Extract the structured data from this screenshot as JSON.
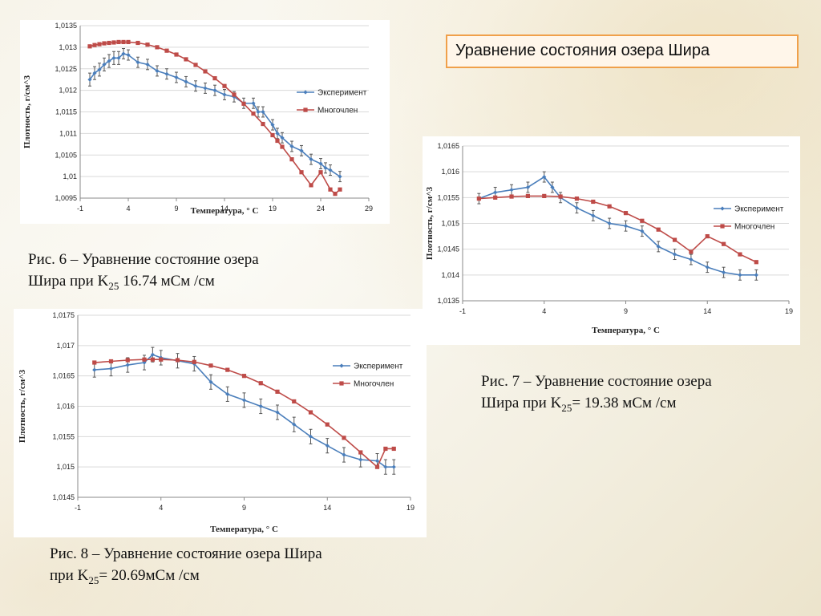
{
  "slide_title": "Уравнение состояния озера Шира",
  "captions": [
    {
      "prefix": "Рис. 6 – Уравнение состояние озера",
      "line2_pre": "Шира при K",
      "sub": "25",
      "line2_post": " 16.74 мСм /см"
    },
    {
      "prefix": "Рис. 7 – Уравнение состояние озера",
      "line2_pre": "Шира при K",
      "sub": "25",
      "line2_post": "= 19.38 мСм /см"
    },
    {
      "prefix": "Рис. 8 – Уравнение состояние озера Шира",
      "line2_pre": "при K",
      "sub": "25",
      "line2_post": "= 20.69мСм /см"
    }
  ],
  "colors": {
    "experiment": "#4a7ebb",
    "polynomial": "#be4b48",
    "grid": "#d9d9d9",
    "errorbar": "#555555"
  },
  "chart_data": [
    {
      "type": "line",
      "xlabel": "Температура, ° С",
      "ylabel": "Плотность, г/см^3",
      "xlim": [
        -1,
        29
      ],
      "ylim": [
        1.0095,
        1.0135
      ],
      "xticks": [
        "-1",
        "4",
        "9",
        "14",
        "19",
        "24",
        "29"
      ],
      "yticks": [
        "1,0095",
        "1,01",
        "1,0105",
        "1,011",
        "1,0115",
        "1,012",
        "1,0125",
        "1,013",
        "1,0135"
      ],
      "legend": "right",
      "series": [
        {
          "name": "Эксперимент",
          "x": [
            0,
            0.5,
            1,
            1.5,
            2,
            2.5,
            3,
            3.5,
            4,
            5,
            6,
            7,
            8,
            9,
            10,
            11,
            12,
            13,
            14,
            15,
            16,
            17,
            17.5,
            18,
            19,
            19.5,
            20,
            21,
            22,
            23,
            24,
            24.5,
            25,
            26
          ],
          "y": [
            1.01225,
            1.0124,
            1.01248,
            1.0126,
            1.01268,
            1.01275,
            1.01275,
            1.01285,
            1.01282,
            1.01265,
            1.0126,
            1.01245,
            1.01238,
            1.0123,
            1.0122,
            1.0121,
            1.01205,
            1.012,
            1.0119,
            1.01185,
            1.0117,
            1.0117,
            1.0115,
            1.0115,
            1.0112,
            1.011,
            1.0109,
            1.0107,
            1.0106,
            1.0104,
            1.0103,
            1.0102,
            1.01015,
            1.01
          ],
          "err": [
            0.00015,
            0.00015,
            0.00015,
            0.00015,
            0.00015,
            0.00015,
            0.00015,
            0.00012,
            0.00012,
            0.00012,
            0.00012,
            0.00012,
            0.00012,
            0.00012,
            0.00012,
            0.00012,
            0.00012,
            0.00012,
            0.00012,
            0.00012,
            0.00012,
            0.00012,
            0.00012,
            0.00012,
            0.00012,
            0.00012,
            0.00012,
            0.00012,
            0.00012,
            0.00012,
            0.00012,
            0.00012,
            0.00012,
            0.00012
          ]
        },
        {
          "name": "Многочлен",
          "x": [
            0,
            0.5,
            1,
            1.5,
            2,
            2.5,
            3,
            3.5,
            4,
            5,
            6,
            7,
            8,
            9,
            10,
            11,
            12,
            13,
            14,
            15,
            16,
            17,
            18,
            19,
            19.5,
            20,
            21,
            22,
            23,
            24,
            25,
            25.5,
            26
          ],
          "y": [
            1.01302,
            1.01305,
            1.01307,
            1.01309,
            1.0131,
            1.01311,
            1.01312,
            1.01312,
            1.01312,
            1.0131,
            1.01306,
            1.013,
            1.01292,
            1.01283,
            1.01272,
            1.01259,
            1.01244,
            1.01228,
            1.0121,
            1.0119,
            1.01169,
            1.01146,
            1.01122,
            1.01096,
            1.01083,
            1.01069,
            1.0104,
            1.0101,
            1.0098,
            1.0101,
            1.0097,
            1.0096,
            1.0097
          ]
        }
      ]
    },
    {
      "type": "line",
      "xlabel": "Температура, ° С",
      "ylabel": "Плотность, г/см^3",
      "xlim": [
        -1,
        19
      ],
      "ylim": [
        1.0135,
        1.0165
      ],
      "xticks": [
        "-1",
        "4",
        "9",
        "14",
        "19"
      ],
      "yticks": [
        "1,0135",
        "1,014",
        "1,0145",
        "1,015",
        "1,0155",
        "1,016",
        "1,0165"
      ],
      "legend": "right",
      "series": [
        {
          "name": "Эксперимент",
          "x": [
            0,
            1,
            2,
            3,
            4,
            4.5,
            5,
            6,
            7,
            8,
            9,
            10,
            11,
            12,
            13,
            14,
            15,
            16,
            17
          ],
          "y": [
            1.01548,
            1.0156,
            1.01565,
            1.0157,
            1.0159,
            1.0157,
            1.0155,
            1.0153,
            1.01515,
            1.015,
            1.01495,
            1.01485,
            1.01455,
            1.0144,
            1.0143,
            1.01415,
            1.01405,
            1.014,
            1.014
          ],
          "err": [
            0.0001,
            0.0001,
            0.0001,
            0.0001,
            0.0001,
            0.0001,
            0.0001,
            0.0001,
            0.0001,
            0.0001,
            0.0001,
            0.0001,
            0.0001,
            0.0001,
            0.0001,
            0.0001,
            0.0001,
            0.0001,
            0.0001
          ]
        },
        {
          "name": "Многочлен",
          "x": [
            0,
            1,
            2,
            3,
            4,
            5,
            6,
            7,
            8,
            9,
            10,
            11,
            12,
            13,
            14,
            15,
            16,
            17
          ],
          "y": [
            1.01548,
            1.0155,
            1.01552,
            1.01553,
            1.01553,
            1.01552,
            1.01548,
            1.01542,
            1.01533,
            1.0152,
            1.01505,
            1.01488,
            1.01468,
            1.01445,
            1.01475,
            1.0146,
            1.0144,
            1.01425
          ]
        }
      ]
    },
    {
      "type": "line",
      "xlabel": "Температура, ° С",
      "ylabel": "Плотность, г/см^3",
      "xlim": [
        -1,
        19
      ],
      "ylim": [
        1.0145,
        1.0175
      ],
      "xticks": [
        "-1",
        "4",
        "9",
        "14",
        "19"
      ],
      "yticks": [
        "1,0145",
        "1,015",
        "1,0155",
        "1,016",
        "1,0165",
        "1,017",
        "1,0175"
      ],
      "legend": "right",
      "series": [
        {
          "name": "Эксперимент",
          "x": [
            0,
            1,
            2,
            3,
            3.5,
            4,
            5,
            6,
            7,
            8,
            9,
            10,
            11,
            12,
            13,
            14,
            15,
            16,
            17,
            17.5,
            18
          ],
          "y": [
            1.0166,
            1.01662,
            1.01668,
            1.01672,
            1.01685,
            1.0168,
            1.01675,
            1.0167,
            1.0164,
            1.0162,
            1.0161,
            1.016,
            1.0159,
            1.0157,
            1.0155,
            1.01535,
            1.0152,
            1.01512,
            1.0151,
            1.015,
            1.015
          ],
          "err": [
            0.00012,
            0.00012,
            0.00012,
            0.00012,
            0.00012,
            0.00012,
            0.00012,
            0.00012,
            0.00012,
            0.00012,
            0.00012,
            0.00012,
            0.00012,
            0.00012,
            0.00012,
            0.00012,
            0.00012,
            0.00012,
            0.00012,
            0.00012,
            0.00012
          ]
        },
        {
          "name": "Многочлен",
          "x": [
            0,
            1,
            2,
            3,
            3.5,
            4,
            5,
            6,
            7,
            8,
            9,
            10,
            11,
            12,
            13,
            14,
            15,
            16,
            17,
            17.5,
            18
          ],
          "y": [
            1.01672,
            1.01674,
            1.01676,
            1.01677,
            1.01677,
            1.01677,
            1.01676,
            1.01673,
            1.01667,
            1.0166,
            1.0165,
            1.01638,
            1.01624,
            1.01608,
            1.0159,
            1.0157,
            1.01548,
            1.01524,
            1.015,
            1.0153,
            1.0153
          ]
        }
      ]
    }
  ]
}
